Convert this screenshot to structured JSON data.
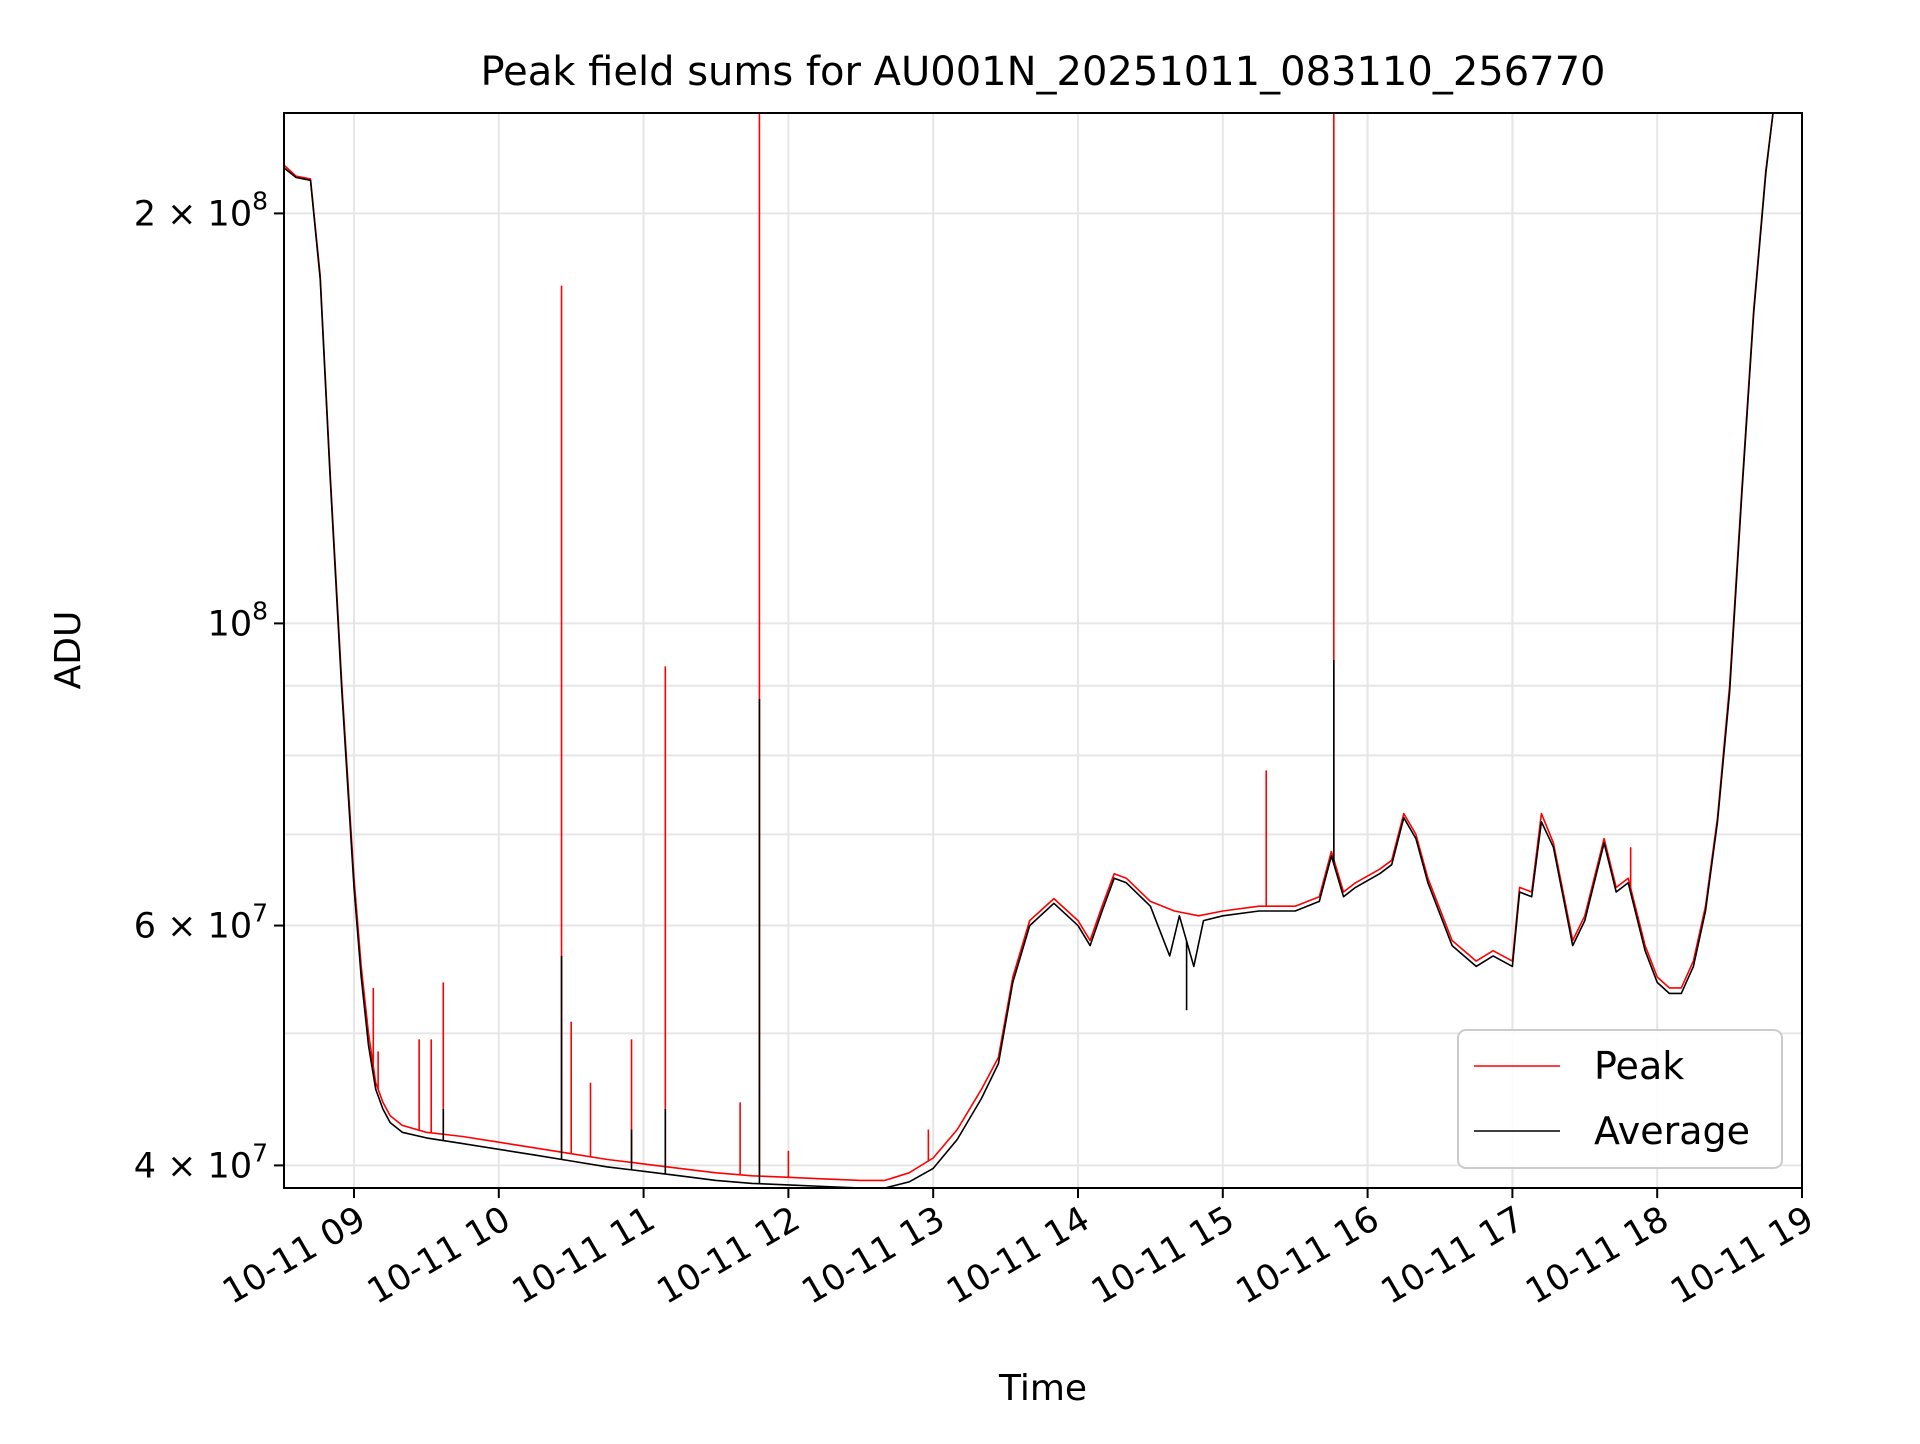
{
  "chart_data": {
    "type": "line",
    "title": "Peak field sums for AU001N_20251011_083110_256770",
    "xlabel": "Time",
    "ylabel": "ADU",
    "yscale": "log",
    "xlim": [
      "2025-10-11 08:31",
      "2025-10-11 19:00"
    ],
    "ylim": [
      38500000,
      237000000
    ],
    "grid": true,
    "legend_position": "lower-right",
    "x_ticks": [
      {
        "value": "2025-10-11 09:00",
        "label": "10-11 09"
      },
      {
        "value": "2025-10-11 10:00",
        "label": "10-11 10"
      },
      {
        "value": "2025-10-11 11:00",
        "label": "10-11 11"
      },
      {
        "value": "2025-10-11 12:00",
        "label": "10-11 12"
      },
      {
        "value": "2025-10-11 13:00",
        "label": "10-11 13"
      },
      {
        "value": "2025-10-11 14:00",
        "label": "10-11 14"
      },
      {
        "value": "2025-10-11 15:00",
        "label": "10-11 15"
      },
      {
        "value": "2025-10-11 16:00",
        "label": "10-11 16"
      },
      {
        "value": "2025-10-11 17:00",
        "label": "10-11 17"
      },
      {
        "value": "2025-10-11 18:00",
        "label": "10-11 18"
      },
      {
        "value": "2025-10-11 19:00",
        "label": "10-11 19"
      }
    ],
    "y_major_ticks": [
      {
        "value": 40000000,
        "mantissa": "4",
        "base": "10",
        "exponent": "7"
      },
      {
        "value": 60000000,
        "mantissa": "6",
        "base": "10",
        "exponent": "7"
      },
      {
        "value": 100000000,
        "mantissa": "",
        "base": "10",
        "exponent": "8"
      },
      {
        "value": 200000000,
        "mantissa": "2",
        "base": "10",
        "exponent": "8"
      }
    ],
    "y_minor_gridlines": [
      50000000,
      70000000,
      80000000,
      90000000
    ],
    "series": [
      {
        "name": "Peak",
        "color": "#ff0000",
        "points": [
          [
            "2025-10-11 08:31",
            217000000
          ],
          [
            "2025-10-11 08:36",
            213000000
          ],
          [
            "2025-10-11 08:42",
            212000000
          ],
          [
            "2025-10-11 08:46",
            180000000
          ],
          [
            "2025-10-11 08:50",
            130000000
          ],
          [
            "2025-10-11 08:55",
            90000000
          ],
          [
            "2025-10-11 09:00",
            65000000
          ],
          [
            "2025-10-11 09:03",
            56000000
          ],
          [
            "2025-10-11 09:06",
            50000000
          ],
          [
            "2025-10-11 09:09",
            46000000
          ],
          [
            "2025-10-11 09:12",
            44500000
          ],
          [
            "2025-10-11 09:15",
            43500000
          ],
          [
            "2025-10-11 09:20",
            42800000
          ],
          [
            "2025-10-11 09:30",
            42300000
          ],
          [
            "2025-10-11 09:45",
            42000000
          ],
          [
            "2025-10-11 10:00",
            41600000
          ],
          [
            "2025-10-11 10:15",
            41200000
          ],
          [
            "2025-10-11 10:30",
            40800000
          ],
          [
            "2025-10-11 10:45",
            40400000
          ],
          [
            "2025-10-11 11:00",
            40100000
          ],
          [
            "2025-10-11 11:15",
            39800000
          ],
          [
            "2025-10-11 11:30",
            39500000
          ],
          [
            "2025-10-11 11:45",
            39300000
          ],
          [
            "2025-10-11 12:00",
            39200000
          ],
          [
            "2025-10-11 12:15",
            39100000
          ],
          [
            "2025-10-11 12:30",
            39000000
          ],
          [
            "2025-10-11 12:40",
            39000000
          ],
          [
            "2025-10-11 12:50",
            39500000
          ],
          [
            "2025-10-11 13:00",
            40500000
          ],
          [
            "2025-10-11 13:10",
            42500000
          ],
          [
            "2025-10-11 13:20",
            45500000
          ],
          [
            "2025-10-11 13:27",
            48000000
          ],
          [
            "2025-10-11 13:33",
            55000000
          ],
          [
            "2025-10-11 13:40",
            60500000
          ],
          [
            "2025-10-11 13:50",
            62800000
          ],
          [
            "2025-10-11 14:00",
            60500000
          ],
          [
            "2025-10-11 14:05",
            58500000
          ],
          [
            "2025-10-11 14:10",
            62000000
          ],
          [
            "2025-10-11 14:15",
            65500000
          ],
          [
            "2025-10-11 14:20",
            65000000
          ],
          [
            "2025-10-11 14:30",
            62500000
          ],
          [
            "2025-10-11 14:40",
            61500000
          ],
          [
            "2025-10-11 14:50",
            61000000
          ],
          [
            "2025-10-11 15:00",
            61500000
          ],
          [
            "2025-10-11 15:15",
            62000000
          ],
          [
            "2025-10-11 15:30",
            62000000
          ],
          [
            "2025-10-11 15:40",
            63000000
          ],
          [
            "2025-10-11 15:45",
            68000000
          ],
          [
            "2025-10-11 15:50",
            63500000
          ],
          [
            "2025-10-11 15:55",
            64500000
          ],
          [
            "2025-10-11 16:05",
            66000000
          ],
          [
            "2025-10-11 16:10",
            67000000
          ],
          [
            "2025-10-11 16:15",
            72500000
          ],
          [
            "2025-10-11 16:20",
            70000000
          ],
          [
            "2025-10-11 16:25",
            65000000
          ],
          [
            "2025-10-11 16:35",
            58500000
          ],
          [
            "2025-10-11 16:45",
            56500000
          ],
          [
            "2025-10-11 16:52",
            57500000
          ],
          [
            "2025-10-11 17:00",
            56500000
          ],
          [
            "2025-10-11 17:03",
            64000000
          ],
          [
            "2025-10-11 17:08",
            63500000
          ],
          [
            "2025-10-11 17:12",
            72500000
          ],
          [
            "2025-10-11 17:17",
            69000000
          ],
          [
            "2025-10-11 17:25",
            58500000
          ],
          [
            "2025-10-11 17:30",
            61000000
          ],
          [
            "2025-10-11 17:38",
            69500000
          ],
          [
            "2025-10-11 17:43",
            64000000
          ],
          [
            "2025-10-11 17:48",
            65000000
          ],
          [
            "2025-10-11 17:55",
            58000000
          ],
          [
            "2025-10-11 18:00",
            55000000
          ],
          [
            "2025-10-11 18:05",
            54000000
          ],
          [
            "2025-10-11 18:10",
            54000000
          ],
          [
            "2025-10-11 18:15",
            56500000
          ],
          [
            "2025-10-11 18:20",
            62000000
          ],
          [
            "2025-10-11 18:25",
            72000000
          ],
          [
            "2025-10-11 18:30",
            90000000
          ],
          [
            "2025-10-11 18:35",
            125000000
          ],
          [
            "2025-10-11 18:40",
            170000000
          ],
          [
            "2025-10-11 18:45",
            215000000
          ],
          [
            "2025-10-11 18:48",
            237000000
          ],
          [
            "2025-10-11 19:00",
            237000000
          ]
        ],
        "spikes": [
          [
            "2025-10-11 09:08",
            54000000
          ],
          [
            "2025-10-11 09:10",
            48500000
          ],
          [
            "2025-10-11 09:27",
            49500000
          ],
          [
            "2025-10-11 09:32",
            49500000
          ],
          [
            "2025-10-11 09:37",
            54500000
          ],
          [
            "2025-10-11 10:26",
            177000000
          ],
          [
            "2025-10-11 10:30",
            51000000
          ],
          [
            "2025-10-11 10:38",
            46000000
          ],
          [
            "2025-10-11 10:55",
            49500000
          ],
          [
            "2025-10-11 11:09",
            93000000
          ],
          [
            "2025-10-11 11:40",
            44500000
          ],
          [
            "2025-10-11 11:48",
            237000000
          ],
          [
            "2025-10-11 12:00",
            41000000
          ],
          [
            "2025-10-11 12:58",
            42500000
          ],
          [
            "2025-10-11 15:18",
            78000000
          ],
          [
            "2025-10-11 15:46",
            237000000
          ],
          [
            "2025-10-11 17:49",
            68500000
          ]
        ]
      },
      {
        "name": "Average",
        "color": "#000000",
        "points": [
          [
            "2025-10-11 08:31",
            216000000
          ],
          [
            "2025-10-11 08:36",
            212500000
          ],
          [
            "2025-10-11 08:42",
            211500000
          ],
          [
            "2025-10-11 08:46",
            179000000
          ],
          [
            "2025-10-11 08:50",
            129000000
          ],
          [
            "2025-10-11 08:55",
            89000000
          ],
          [
            "2025-10-11 09:00",
            64000000
          ],
          [
            "2025-10-11 09:03",
            55000000
          ],
          [
            "2025-10-11 09:06",
            49000000
          ],
          [
            "2025-10-11 09:09",
            45500000
          ],
          [
            "2025-10-11 09:12",
            44000000
          ],
          [
            "2025-10-11 09:15",
            43000000
          ],
          [
            "2025-10-11 09:20",
            42300000
          ],
          [
            "2025-10-11 09:30",
            41900000
          ],
          [
            "2025-10-11 09:45",
            41500000
          ],
          [
            "2025-10-11 10:00",
            41100000
          ],
          [
            "2025-10-11 10:15",
            40700000
          ],
          [
            "2025-10-11 10:30",
            40300000
          ],
          [
            "2025-10-11 10:45",
            39900000
          ],
          [
            "2025-10-11 11:00",
            39600000
          ],
          [
            "2025-10-11 11:15",
            39300000
          ],
          [
            "2025-10-11 11:30",
            39000000
          ],
          [
            "2025-10-11 11:45",
            38800000
          ],
          [
            "2025-10-11 12:00",
            38700000
          ],
          [
            "2025-10-11 12:15",
            38600000
          ],
          [
            "2025-10-11 12:30",
            38500000
          ],
          [
            "2025-10-11 12:40",
            38500000
          ],
          [
            "2025-10-11 12:50",
            38900000
          ],
          [
            "2025-10-11 13:00",
            39800000
          ],
          [
            "2025-10-11 13:10",
            41800000
          ],
          [
            "2025-10-11 13:20",
            44800000
          ],
          [
            "2025-10-11 13:27",
            47500000
          ],
          [
            "2025-10-11 13:33",
            54500000
          ],
          [
            "2025-10-11 13:40",
            60000000
          ],
          [
            "2025-10-11 13:50",
            62300000
          ],
          [
            "2025-10-11 14:00",
            60000000
          ],
          [
            "2025-10-11 14:05",
            58000000
          ],
          [
            "2025-10-11 14:10",
            61500000
          ],
          [
            "2025-10-11 14:15",
            65000000
          ],
          [
            "2025-10-11 14:20",
            64500000
          ],
          [
            "2025-10-11 14:30",
            62000000
          ],
          [
            "2025-10-11 14:38",
            57000000
          ],
          [
            "2025-10-11 14:42",
            61000000
          ],
          [
            "2025-10-11 14:48",
            56000000
          ],
          [
            "2025-10-11 14:52",
            60500000
          ],
          [
            "2025-10-11 15:00",
            61000000
          ],
          [
            "2025-10-11 15:15",
            61500000
          ],
          [
            "2025-10-11 15:30",
            61500000
          ],
          [
            "2025-10-11 15:40",
            62500000
          ],
          [
            "2025-10-11 15:45",
            67500000
          ],
          [
            "2025-10-11 15:50",
            63000000
          ],
          [
            "2025-10-11 15:55",
            64000000
          ],
          [
            "2025-10-11 16:05",
            65500000
          ],
          [
            "2025-10-11 16:10",
            66500000
          ],
          [
            "2025-10-11 16:15",
            72000000
          ],
          [
            "2025-10-11 16:20",
            69500000
          ],
          [
            "2025-10-11 16:25",
            64500000
          ],
          [
            "2025-10-11 16:35",
            58000000
          ],
          [
            "2025-10-11 16:45",
            56000000
          ],
          [
            "2025-10-11 16:52",
            57000000
          ],
          [
            "2025-10-11 17:00",
            56000000
          ],
          [
            "2025-10-11 17:03",
            63500000
          ],
          [
            "2025-10-11 17:08",
            63000000
          ],
          [
            "2025-10-11 17:12",
            71500000
          ],
          [
            "2025-10-11 17:17",
            68500000
          ],
          [
            "2025-10-11 17:25",
            58000000
          ],
          [
            "2025-10-11 17:30",
            60500000
          ],
          [
            "2025-10-11 17:38",
            69000000
          ],
          [
            "2025-10-11 17:43",
            63500000
          ],
          [
            "2025-10-11 17:48",
            64500000
          ],
          [
            "2025-10-11 17:55",
            57500000
          ],
          [
            "2025-10-11 18:00",
            54500000
          ],
          [
            "2025-10-11 18:05",
            53500000
          ],
          [
            "2025-10-11 18:10",
            53500000
          ],
          [
            "2025-10-11 18:15",
            56000000
          ],
          [
            "2025-10-11 18:20",
            61500000
          ],
          [
            "2025-10-11 18:25",
            71500000
          ],
          [
            "2025-10-11 18:30",
            89000000
          ],
          [
            "2025-10-11 18:35",
            124000000
          ],
          [
            "2025-10-11 18:40",
            169000000
          ],
          [
            "2025-10-11 18:45",
            214000000
          ],
          [
            "2025-10-11 18:48",
            237000000
          ],
          [
            "2025-10-11 19:00",
            237000000
          ]
        ],
        "spikes": [
          [
            "2025-10-11 09:37",
            44000000
          ],
          [
            "2025-10-11 10:26",
            57000000
          ],
          [
            "2025-10-11 10:55",
            42500000
          ],
          [
            "2025-10-11 11:09",
            44000000
          ],
          [
            "2025-10-11 11:48",
            88000000
          ],
          [
            "2025-10-11 14:45",
            52000000
          ],
          [
            "2025-10-11 15:46",
            94000000
          ]
        ]
      }
    ]
  }
}
